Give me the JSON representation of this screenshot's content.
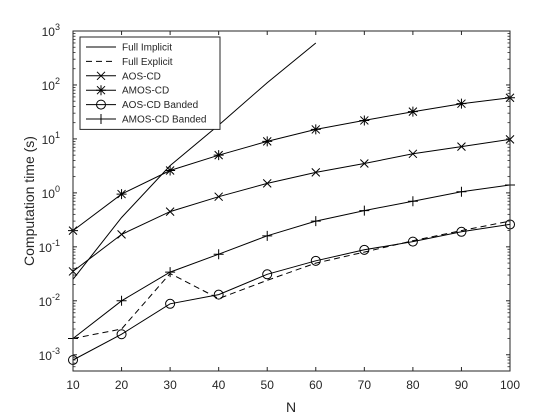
{
  "chart_data": {
    "type": "line",
    "title": "",
    "xlabel": "N",
    "ylabel": "Computation time (s)",
    "x": [
      10,
      20,
      30,
      40,
      50,
      60,
      70,
      80,
      90,
      100
    ],
    "xlim": [
      10,
      100
    ],
    "ylim": [
      0.0005,
      1000
    ],
    "yscale": "log",
    "x_tick_labels": [
      "10",
      "20",
      "30",
      "40",
      "50",
      "60",
      "70",
      "80",
      "90",
      "100"
    ],
    "y_ticks": [
      {
        "base": "10",
        "exp": "-3",
        "value": 0.001
      },
      {
        "base": "10",
        "exp": "-2",
        "value": 0.01
      },
      {
        "base": "10",
        "exp": "-1",
        "value": 0.1
      },
      {
        "base": "10",
        "exp": "0",
        "value": 1
      },
      {
        "base": "10",
        "exp": "1",
        "value": 10
      },
      {
        "base": "10",
        "exp": "2",
        "value": 100
      },
      {
        "base": "10",
        "exp": "3",
        "value": 1000
      }
    ],
    "grid": false,
    "legend_position": "top-left",
    "line_color": "#000000",
    "series": [
      {
        "name": "Full Implicit",
        "dash": "solid",
        "marker": "none",
        "x": [
          10,
          20,
          30,
          40,
          50,
          60
        ],
        "values": [
          0.025,
          0.35,
          3.2,
          18,
          110,
          600
        ]
      },
      {
        "name": "Full Explicit",
        "dash": "dashed",
        "marker": "none",
        "x": [
          10,
          20,
          30,
          40,
          50,
          60,
          70,
          80,
          90,
          100
        ],
        "values": [
          0.002,
          0.003,
          0.032,
          0.011,
          0.024,
          0.05,
          0.08,
          0.13,
          0.2,
          0.3
        ]
      },
      {
        "name": "AOS-CD",
        "dash": "solid",
        "marker": "x",
        "x": [
          10,
          20,
          30,
          40,
          50,
          60,
          70,
          80,
          90,
          100
        ],
        "values": [
          0.035,
          0.17,
          0.45,
          0.85,
          1.5,
          2.4,
          3.5,
          5.3,
          7.2,
          9.8
        ]
      },
      {
        "name": "AMOS-CD",
        "dash": "solid",
        "marker": "asterisk",
        "x": [
          10,
          20,
          30,
          40,
          50,
          60,
          70,
          80,
          90,
          100
        ],
        "values": [
          0.2,
          0.95,
          2.6,
          5.0,
          9.0,
          15,
          22,
          32,
          45,
          58
        ]
      },
      {
        "name": "AOS-CD Banded",
        "dash": "solid",
        "marker": "circle",
        "x": [
          10,
          20,
          30,
          40,
          50,
          60,
          70,
          80,
          90,
          100
        ],
        "values": [
          0.0008,
          0.0024,
          0.0088,
          0.013,
          0.031,
          0.055,
          0.088,
          0.125,
          0.19,
          0.26
        ]
      },
      {
        "name": "AMOS-CD Banded",
        "dash": "solid",
        "marker": "plus",
        "x": [
          10,
          20,
          30,
          40,
          50,
          60,
          70,
          80,
          90,
          100
        ],
        "values": [
          0.002,
          0.01,
          0.034,
          0.073,
          0.16,
          0.3,
          0.47,
          0.7,
          1.05,
          1.4
        ]
      }
    ]
  }
}
